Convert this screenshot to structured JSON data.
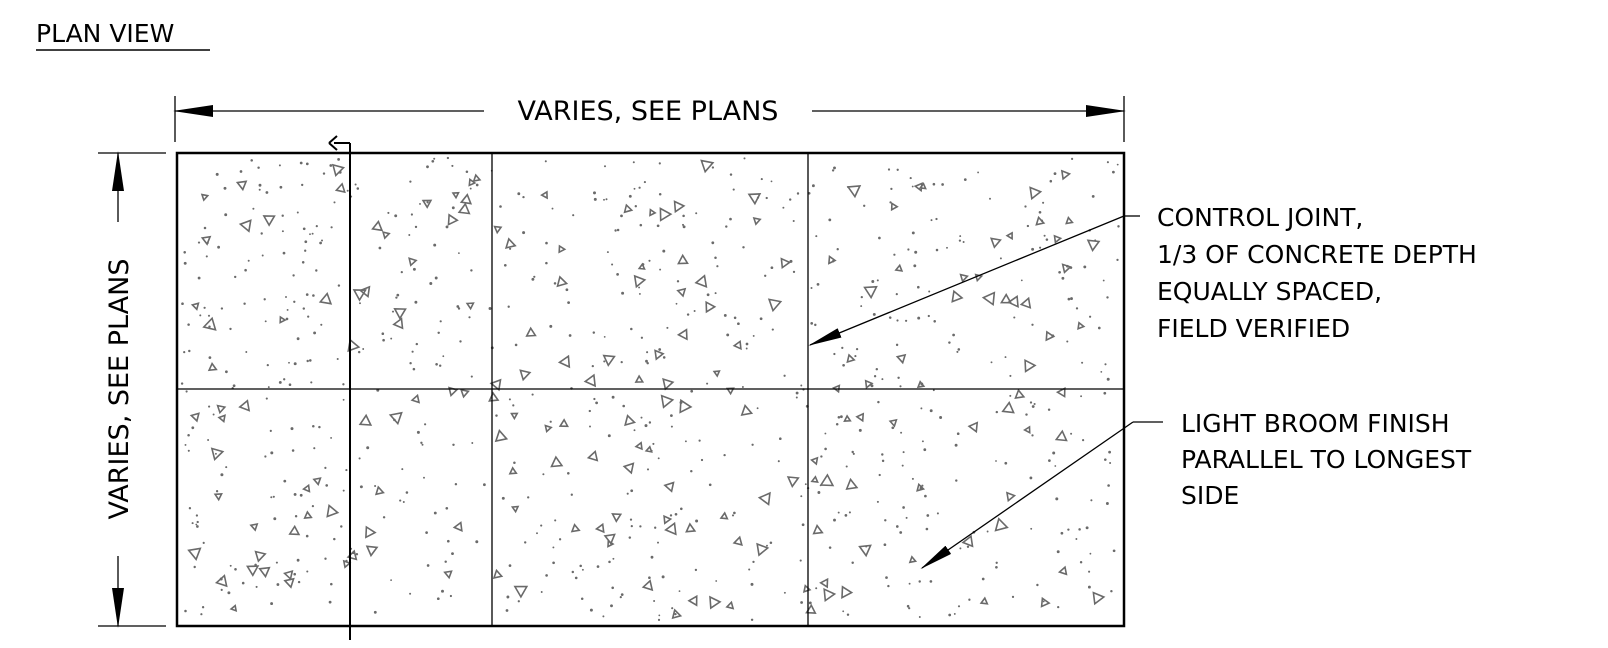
{
  "drawing": {
    "title": "PLAN VIEW",
    "horizontal_dimension": "VARIES, SEE PLANS",
    "vertical_dimension": "VARIES, SEE PLANS",
    "callouts": {
      "control_joint": [
        "CONTROL JOINT,",
        "1/3 OF CONCRETE DEPTH",
        "EQUALLY SPACED,",
        "FIELD VERIFIED"
      ],
      "broom_finish": [
        "LIGHT BROOM FINISH",
        "PARALLEL TO LONGEST",
        "SIDE"
      ]
    },
    "line_color": "#000000",
    "aggregate_color": "#6a6a6a",
    "slab_panels": {
      "columns": 3,
      "rows": 2
    }
  }
}
